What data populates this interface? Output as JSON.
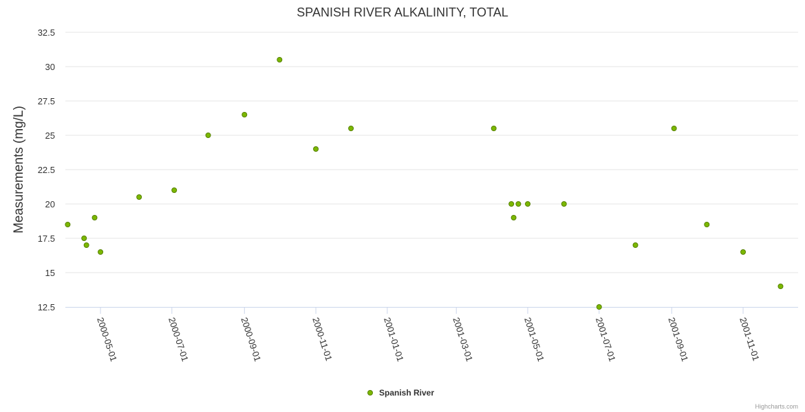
{
  "chart_data": {
    "type": "scatter",
    "title": "SPANISH RIVER ALKALINITY, TOTAL",
    "ylabel": "Measurements (mg/L)",
    "xlabel": "",
    "ylim": [
      12.5,
      32.5
    ],
    "yticks": [
      "12.5",
      "15",
      "17.5",
      "20",
      "22.5",
      "25",
      "27.5",
      "30",
      "32.5"
    ],
    "xlim": [
      "2000-04-01",
      "2001-12-18"
    ],
    "xticks": [
      "2000-05-01",
      "2000-07-01",
      "2000-09-01",
      "2000-11-01",
      "2001-01-01",
      "2001-03-01",
      "2001-05-01",
      "2001-07-01",
      "2001-09-01",
      "2001-11-01"
    ],
    "grid": true,
    "legend": "bottom-center",
    "series": [
      {
        "name": "Spanish River",
        "color": "#7cb800",
        "points": [
          {
            "x": "2000-04-03",
            "y": 18.5
          },
          {
            "x": "2000-04-17",
            "y": 17.5
          },
          {
            "x": "2000-04-19",
            "y": 17
          },
          {
            "x": "2000-04-26",
            "y": 19
          },
          {
            "x": "2000-05-01",
            "y": 16.5
          },
          {
            "x": "2000-06-03",
            "y": 20.5
          },
          {
            "x": "2000-07-03",
            "y": 21
          },
          {
            "x": "2000-08-01",
            "y": 25
          },
          {
            "x": "2000-09-01",
            "y": 26.5
          },
          {
            "x": "2000-10-01",
            "y": 30.5
          },
          {
            "x": "2000-11-01",
            "y": 24
          },
          {
            "x": "2000-12-01",
            "y": 25.5
          },
          {
            "x": "2001-04-02",
            "y": 25.5
          },
          {
            "x": "2001-04-17",
            "y": 20
          },
          {
            "x": "2001-04-19",
            "y": 19
          },
          {
            "x": "2001-04-23",
            "y": 20
          },
          {
            "x": "2001-05-01",
            "y": 20
          },
          {
            "x": "2001-06-01",
            "y": 20
          },
          {
            "x": "2001-07-01",
            "y": 12.5
          },
          {
            "x": "2001-08-01",
            "y": 17
          },
          {
            "x": "2001-09-03",
            "y": 25.5
          },
          {
            "x": "2001-10-01",
            "y": 18.5
          },
          {
            "x": "2001-11-01",
            "y": 16.5
          },
          {
            "x": "2001-12-03",
            "y": 14
          }
        ]
      }
    ]
  },
  "credits": "Highcharts.com"
}
